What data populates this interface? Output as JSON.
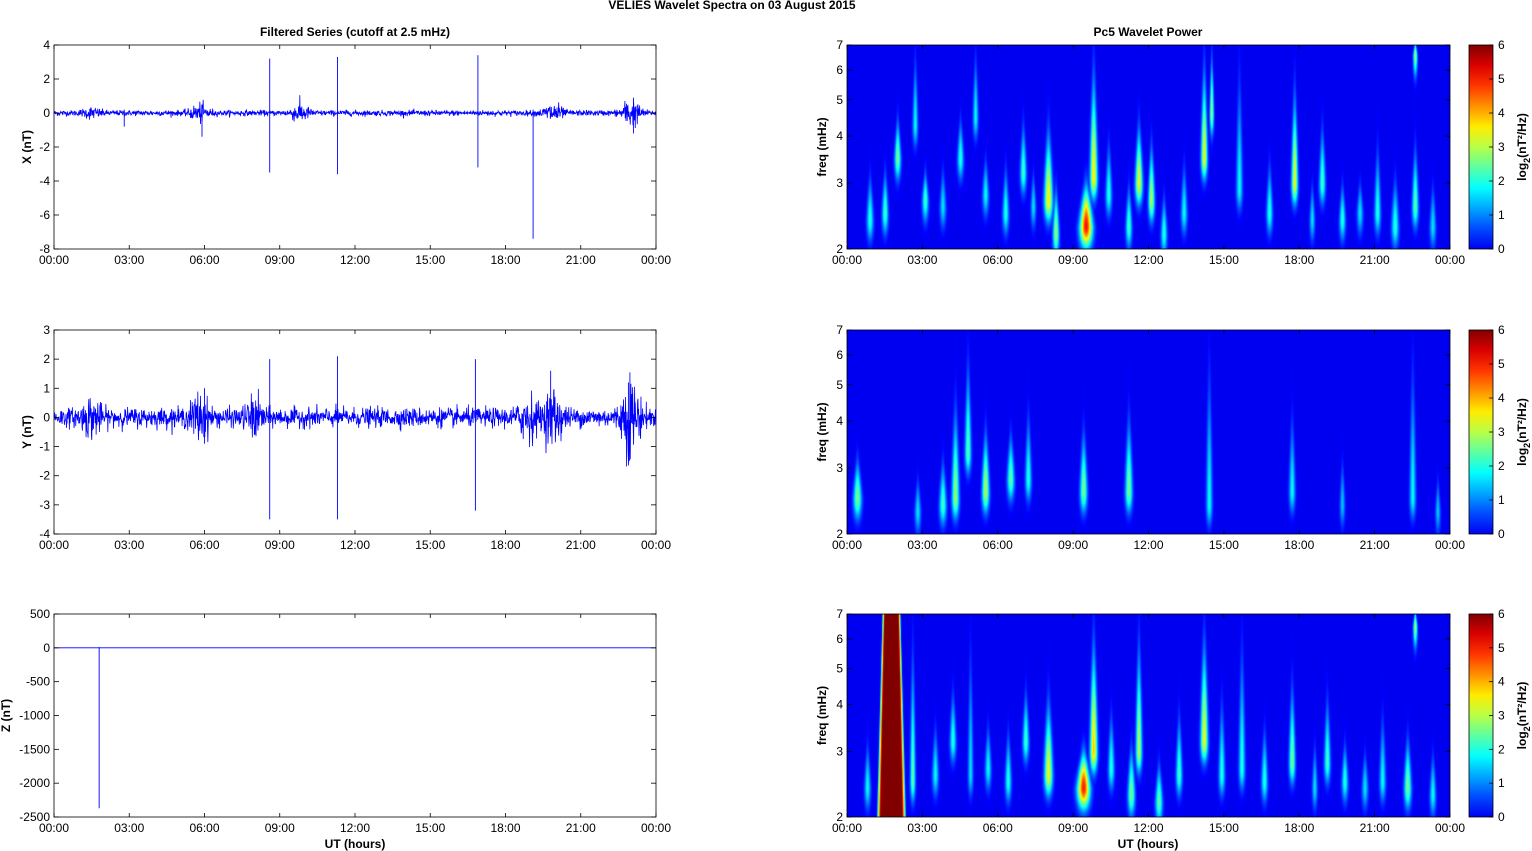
{
  "figure": {
    "title": "VELIES Wavelet Spectra on 03 August    2015",
    "left_column_title": "Filtered Series (cutoff at 2.5 mHz)",
    "right_column_title": "Pc5 Wavelet Power",
    "xlabel": "UT (hours)"
  },
  "colors": {
    "series": "#0000ff",
    "frame": "#000000"
  },
  "chart_data": [
    {
      "type": "line",
      "component": "X",
      "ylabel": "X (nT)",
      "ylim": [
        -8,
        4
      ],
      "yticks": [
        "4",
        "2",
        "0",
        "-2",
        "-4",
        "-6",
        "-8"
      ],
      "xticks": [
        "00:00",
        "03:00",
        "06:00",
        "09:00",
        "12:00",
        "15:00",
        "18:00",
        "21:00",
        "00:00"
      ],
      "xlim_hours": [
        0,
        24
      ],
      "noise_amplitude_nT": 0.1,
      "bursts": [
        {
          "t": 1.5,
          "amp": 0.15
        },
        {
          "t": 5.8,
          "amp": 0.3
        },
        {
          "t": 9.8,
          "amp": 0.3
        },
        {
          "t": 19.9,
          "amp": 0.35
        },
        {
          "t": 23.0,
          "amp": 0.5
        }
      ],
      "spikes": [
        {
          "t": 8.6,
          "max": 3.2,
          "min": -3.5
        },
        {
          "t": 11.3,
          "max": 3.3,
          "min": -3.6
        },
        {
          "t": 16.9,
          "max": 3.4,
          "min": -3.2
        },
        {
          "t": 19.1,
          "max": 0.2,
          "min": -7.4
        },
        {
          "t": 5.9,
          "max": 0.3,
          "min": -1.4
        },
        {
          "t": 2.8,
          "max": 0.2,
          "min": -0.8
        },
        {
          "t": 23.1,
          "max": 0.9,
          "min": -1.2
        }
      ]
    },
    {
      "type": "line",
      "component": "Y",
      "ylabel": "Y (nT)",
      "ylim": [
        -4,
        3
      ],
      "yticks": [
        "3",
        "2",
        "1",
        "0",
        "-1",
        "-2",
        "-3",
        "-4"
      ],
      "xticks": [
        "00:00",
        "03:00",
        "06:00",
        "09:00",
        "12:00",
        "15:00",
        "18:00",
        "21:00",
        "00:00"
      ],
      "xlim_hours": [
        0,
        24
      ],
      "noise_amplitude_nT": 0.2,
      "bursts": [
        {
          "t": 1.5,
          "amp": 0.3
        },
        {
          "t": 5.8,
          "amp": 0.4
        },
        {
          "t": 8.0,
          "amp": 0.3
        },
        {
          "t": 18.9,
          "amp": 0.4
        },
        {
          "t": 19.9,
          "amp": 0.5
        },
        {
          "t": 23.0,
          "amp": 0.8
        }
      ],
      "spikes": [
        {
          "t": 8.6,
          "max": 2.0,
          "min": -3.5
        },
        {
          "t": 11.3,
          "max": 2.1,
          "min": -3.5
        },
        {
          "t": 16.8,
          "max": 2.0,
          "min": -3.2
        },
        {
          "t": 6.0,
          "max": 1.0,
          "min": -0.9
        },
        {
          "t": 19.8,
          "max": 1.6,
          "min": -0.6
        },
        {
          "t": 22.9,
          "max": 1.2,
          "min": -1.2
        }
      ]
    },
    {
      "type": "line",
      "component": "Z",
      "ylabel": "Z (nT)",
      "ylim": [
        -2500,
        500
      ],
      "yticks": [
        "500",
        "0",
        "-500",
        "-1000",
        "-1500",
        "-2000",
        "-2500"
      ],
      "xticks": [
        "00:00",
        "03:00",
        "06:00",
        "09:00",
        "12:00",
        "15:00",
        "18:00",
        "21:00",
        "00:00"
      ],
      "xlim_hours": [
        0,
        24
      ],
      "noise_amplitude_nT": 0,
      "bursts": [],
      "spikes": [
        {
          "t": 1.8,
          "max": 10,
          "min": -2370
        }
      ]
    },
    {
      "type": "heatmap",
      "component": "X",
      "ylabel": "freq (mHz)",
      "yscale": "log",
      "ylim": [
        2,
        7
      ],
      "yticks": [
        "7",
        "6",
        "5",
        "4",
        "3",
        "2"
      ],
      "xticks": [
        "00:00",
        "03:00",
        "06:00",
        "09:00",
        "12:00",
        "15:00",
        "18:00",
        "21:00",
        "00:00"
      ],
      "xlim_hours": [
        0,
        24
      ],
      "colorbar": {
        "label": "log2(nT²/Hz)",
        "ticks": [
          "6",
          "5",
          "4",
          "3",
          "2",
          "1",
          "0"
        ],
        "range": [
          0,
          6
        ],
        "colormap": "jet"
      },
      "blobs": [
        {
          "t": 0.9,
          "f": 2.4,
          "p": 2.0,
          "w": 0.13,
          "top": 3.2
        },
        {
          "t": 1.5,
          "f": 2.5,
          "p": 2.2,
          "w": 0.12,
          "top": 3.3
        },
        {
          "t": 2.0,
          "f": 3.5,
          "p": 2.6,
          "w": 0.12,
          "top": 4.5
        },
        {
          "t": 2.7,
          "f": 4.3,
          "p": 1.8,
          "w": 0.1,
          "top": 7.0
        },
        {
          "t": 3.1,
          "f": 2.7,
          "p": 2.2,
          "w": 0.12,
          "top": 3.2
        },
        {
          "t": 3.8,
          "f": 2.6,
          "p": 1.6,
          "w": 0.12,
          "top": 3.3
        },
        {
          "t": 4.5,
          "f": 3.5,
          "p": 2.0,
          "w": 0.12,
          "top": 4.5
        },
        {
          "t": 5.1,
          "f": 4.5,
          "p": 1.8,
          "w": 0.1,
          "top": 7.0
        },
        {
          "t": 5.5,
          "f": 2.8,
          "p": 1.8,
          "w": 0.12,
          "top": 3.5
        },
        {
          "t": 6.3,
          "f": 2.5,
          "p": 2.0,
          "w": 0.12,
          "top": 3.4
        },
        {
          "t": 7.0,
          "f": 3.2,
          "p": 2.2,
          "w": 0.12,
          "top": 4.5
        },
        {
          "t": 7.4,
          "f": 2.6,
          "p": 1.6,
          "w": 0.1,
          "top": 3.2
        },
        {
          "t": 8.0,
          "f": 2.7,
          "p": 3.6,
          "w": 0.16,
          "top": 4.5
        },
        {
          "t": 8.3,
          "f": 2.2,
          "p": 2.8,
          "w": 0.12,
          "top": 3.0
        },
        {
          "t": 9.5,
          "f": 2.3,
          "p": 5.1,
          "w": 0.24,
          "top": 3.0
        },
        {
          "t": 9.8,
          "f": 3.1,
          "p": 3.6,
          "w": 0.14,
          "top": 7.0
        },
        {
          "t": 10.4,
          "f": 2.8,
          "p": 2.0,
          "w": 0.12,
          "top": 4.0
        },
        {
          "t": 11.2,
          "f": 2.3,
          "p": 2.2,
          "w": 0.12,
          "top": 3.0
        },
        {
          "t": 11.6,
          "f": 3.0,
          "p": 3.4,
          "w": 0.14,
          "top": 4.5
        },
        {
          "t": 12.1,
          "f": 2.7,
          "p": 3.0,
          "w": 0.12,
          "top": 4.0
        },
        {
          "t": 12.6,
          "f": 2.2,
          "p": 2.0,
          "w": 0.12,
          "top": 2.8
        },
        {
          "t": 13.4,
          "f": 2.5,
          "p": 1.8,
          "w": 0.12,
          "top": 3.5
        },
        {
          "t": 14.2,
          "f": 3.5,
          "p": 3.4,
          "w": 0.12,
          "top": 7.0
        },
        {
          "t": 14.5,
          "f": 4.6,
          "p": 2.8,
          "w": 0.08,
          "top": 7.0
        },
        {
          "t": 15.6,
          "f": 2.9,
          "p": 1.8,
          "w": 0.12,
          "top": 7.0
        },
        {
          "t": 16.8,
          "f": 2.5,
          "p": 2.0,
          "w": 0.12,
          "top": 3.5
        },
        {
          "t": 17.8,
          "f": 3.0,
          "p": 3.4,
          "w": 0.12,
          "top": 6.0
        },
        {
          "t": 18.5,
          "f": 2.4,
          "p": 1.6,
          "w": 0.1,
          "top": 3.0
        },
        {
          "t": 18.9,
          "f": 3.0,
          "p": 2.2,
          "w": 0.12,
          "top": 4.5
        },
        {
          "t": 19.7,
          "f": 2.4,
          "p": 2.0,
          "w": 0.12,
          "top": 3.0
        },
        {
          "t": 20.4,
          "f": 2.5,
          "p": 1.6,
          "w": 0.12,
          "top": 3.0
        },
        {
          "t": 21.1,
          "f": 2.5,
          "p": 2.0,
          "w": 0.12,
          "top": 4.0
        },
        {
          "t": 21.8,
          "f": 2.3,
          "p": 2.0,
          "w": 0.14,
          "top": 3.2
        },
        {
          "t": 22.6,
          "f": 2.6,
          "p": 2.4,
          "w": 0.12,
          "top": 4.0
        },
        {
          "t": 22.6,
          "f": 6.6,
          "p": 2.8,
          "w": 0.08,
          "top": 7.0
        },
        {
          "t": 23.3,
          "f": 2.3,
          "p": 1.6,
          "w": 0.12,
          "top": 3.0
        }
      ]
    },
    {
      "type": "heatmap",
      "component": "Y",
      "ylabel": "freq (mHz)",
      "yscale": "log",
      "ylim": [
        2,
        7
      ],
      "yticks": [
        "7",
        "6",
        "5",
        "4",
        "3",
        "2"
      ],
      "xticks": [
        "00:00",
        "03:00",
        "06:00",
        "09:00",
        "12:00",
        "15:00",
        "18:00",
        "21:00",
        "00:00"
      ],
      "xlim_hours": [
        0,
        24
      ],
      "colorbar": {
        "label": "log2(nT²/Hz)",
        "ticks": [
          "6",
          "5",
          "4",
          "3",
          "2",
          "1",
          "0"
        ],
        "range": [
          0,
          6
        ],
        "colormap": "jet"
      },
      "blobs": [
        {
          "t": 0.4,
          "f": 2.5,
          "p": 2.6,
          "w": 0.16,
          "top": 3.2
        },
        {
          "t": 2.8,
          "f": 2.3,
          "p": 1.6,
          "w": 0.12,
          "top": 2.8
        },
        {
          "t": 3.8,
          "f": 2.4,
          "p": 2.2,
          "w": 0.14,
          "top": 3.2
        },
        {
          "t": 4.3,
          "f": 2.5,
          "p": 2.8,
          "w": 0.14,
          "top": 5.0
        },
        {
          "t": 4.8,
          "f": 3.3,
          "p": 2.4,
          "w": 0.12,
          "top": 6.5
        },
        {
          "t": 5.5,
          "f": 2.6,
          "p": 3.0,
          "w": 0.14,
          "top": 4.0
        },
        {
          "t": 6.5,
          "f": 2.8,
          "p": 2.4,
          "w": 0.14,
          "top": 3.8
        },
        {
          "t": 7.2,
          "f": 2.8,
          "p": 2.0,
          "w": 0.12,
          "top": 4.5
        },
        {
          "t": 9.4,
          "f": 2.6,
          "p": 2.6,
          "w": 0.14,
          "top": 4.0
        },
        {
          "t": 11.2,
          "f": 2.6,
          "p": 2.6,
          "w": 0.14,
          "top": 4.5
        },
        {
          "t": 14.4,
          "f": 2.4,
          "p": 1.8,
          "w": 0.12,
          "top": 7.0
        },
        {
          "t": 17.7,
          "f": 2.6,
          "p": 1.8,
          "w": 0.12,
          "top": 4.5
        },
        {
          "t": 19.7,
          "f": 2.4,
          "p": 1.4,
          "w": 0.1,
          "top": 3.2
        },
        {
          "t": 22.5,
          "f": 2.5,
          "p": 1.8,
          "w": 0.12,
          "top": 7.0
        },
        {
          "t": 23.5,
          "f": 2.3,
          "p": 1.4,
          "w": 0.1,
          "top": 2.8
        }
      ]
    },
    {
      "type": "heatmap",
      "component": "Z",
      "ylabel": "freq (mHz)",
      "yscale": "log",
      "ylim": [
        2,
        7
      ],
      "yticks": [
        "7",
        "6",
        "5",
        "4",
        "3",
        "2"
      ],
      "xticks": [
        "00:00",
        "03:00",
        "06:00",
        "09:00",
        "12:00",
        "15:00",
        "18:00",
        "21:00",
        "00:00"
      ],
      "xlim_hours": [
        0,
        24
      ],
      "colorbar": {
        "label": "log2(nT²/Hz)",
        "ticks": [
          "6",
          "5",
          "4",
          "3",
          "2",
          "1",
          "0"
        ],
        "range": [
          0,
          6
        ],
        "colormap": "jet"
      },
      "saturated_band": {
        "t0": 1.5,
        "t1": 2.0,
        "fmax": 7.0
      },
      "blobs": [
        {
          "t": 0.8,
          "f": 2.4,
          "p": 1.8,
          "w": 0.12,
          "top": 3.2
        },
        {
          "t": 1.7,
          "f": 2.3,
          "p": 5.6,
          "w": 0.22,
          "top": 3.0
        },
        {
          "t": 2.6,
          "f": 2.5,
          "p": 2.4,
          "w": 0.1,
          "top": 7.0
        },
        {
          "t": 3.5,
          "f": 2.6,
          "p": 1.8,
          "w": 0.12,
          "top": 3.6
        },
        {
          "t": 4.2,
          "f": 3.2,
          "p": 2.0,
          "w": 0.12,
          "top": 4.5
        },
        {
          "t": 4.9,
          "f": 2.6,
          "p": 1.6,
          "w": 0.1,
          "top": 7.0
        },
        {
          "t": 5.6,
          "f": 2.7,
          "p": 1.8,
          "w": 0.12,
          "top": 3.6
        },
        {
          "t": 6.4,
          "f": 2.5,
          "p": 2.0,
          "w": 0.12,
          "top": 3.5
        },
        {
          "t": 7.1,
          "f": 3.2,
          "p": 2.2,
          "w": 0.12,
          "top": 4.5
        },
        {
          "t": 8.0,
          "f": 2.6,
          "p": 3.4,
          "w": 0.16,
          "top": 4.5
        },
        {
          "t": 9.4,
          "f": 2.4,
          "p": 5.0,
          "w": 0.24,
          "top": 3.0
        },
        {
          "t": 9.8,
          "f": 3.0,
          "p": 3.8,
          "w": 0.14,
          "top": 7.0
        },
        {
          "t": 10.5,
          "f": 2.7,
          "p": 2.0,
          "w": 0.12,
          "top": 4.0
        },
        {
          "t": 11.3,
          "f": 2.3,
          "p": 2.6,
          "w": 0.14,
          "top": 3.2
        },
        {
          "t": 11.6,
          "f": 3.0,
          "p": 3.0,
          "w": 0.12,
          "top": 7.0
        },
        {
          "t": 12.4,
          "f": 2.2,
          "p": 2.4,
          "w": 0.14,
          "top": 2.8
        },
        {
          "t": 13.2,
          "f": 2.6,
          "p": 2.2,
          "w": 0.12,
          "top": 4.0
        },
        {
          "t": 14.2,
          "f": 3.2,
          "p": 3.4,
          "w": 0.14,
          "top": 7.0
        },
        {
          "t": 14.9,
          "f": 2.6,
          "p": 2.0,
          "w": 0.12,
          "top": 4.5
        },
        {
          "t": 15.7,
          "f": 2.7,
          "p": 2.0,
          "w": 0.12,
          "top": 7.0
        },
        {
          "t": 16.6,
          "f": 2.5,
          "p": 2.0,
          "w": 0.12,
          "top": 3.6
        },
        {
          "t": 17.7,
          "f": 2.8,
          "p": 2.6,
          "w": 0.12,
          "top": 5.0
        },
        {
          "t": 18.6,
          "f": 2.4,
          "p": 1.6,
          "w": 0.1,
          "top": 3.2
        },
        {
          "t": 19.1,
          "f": 2.8,
          "p": 2.2,
          "w": 0.12,
          "top": 4.5
        },
        {
          "t": 19.8,
          "f": 2.5,
          "p": 2.0,
          "w": 0.12,
          "top": 3.2
        },
        {
          "t": 20.6,
          "f": 2.4,
          "p": 1.6,
          "w": 0.12,
          "top": 3.0
        },
        {
          "t": 21.3,
          "f": 2.5,
          "p": 1.8,
          "w": 0.12,
          "top": 4.0
        },
        {
          "t": 22.3,
          "f": 2.4,
          "p": 2.6,
          "w": 0.14,
          "top": 3.4
        },
        {
          "t": 22.6,
          "f": 6.5,
          "p": 2.8,
          "w": 0.08,
          "top": 7.0
        },
        {
          "t": 23.3,
          "f": 2.3,
          "p": 1.8,
          "w": 0.12,
          "top": 3.0
        }
      ]
    }
  ]
}
